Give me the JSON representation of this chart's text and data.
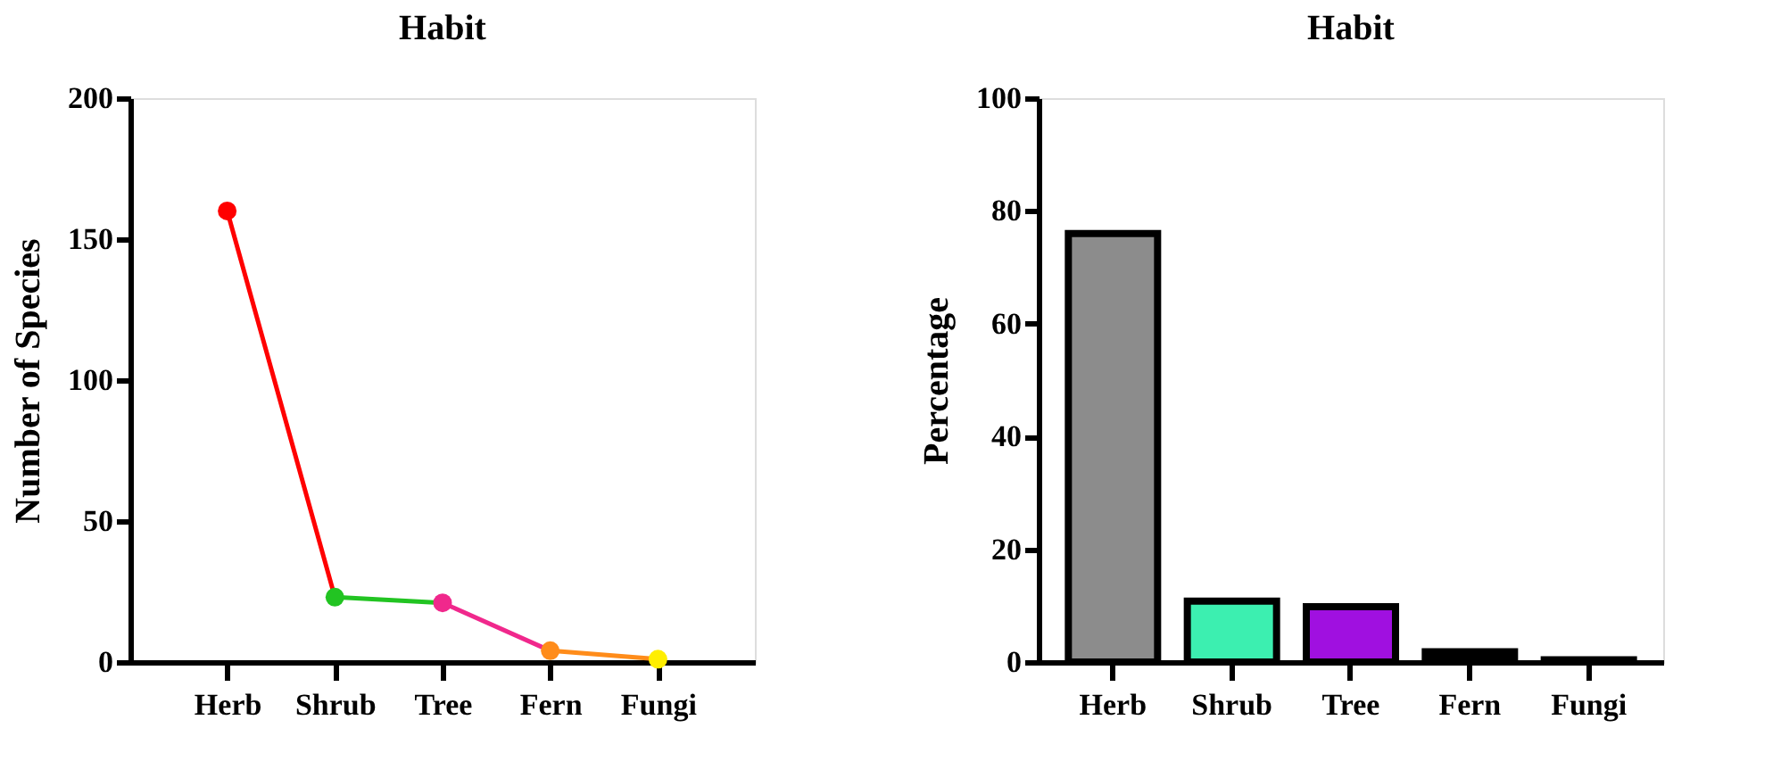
{
  "chart_data": [
    {
      "type": "line",
      "title": "Habit",
      "ylabel": "Number of Species",
      "categories": [
        "Herb",
        "Shrub",
        "Tree",
        "Fern",
        "Fungi"
      ],
      "series": [
        {
          "color": "#ff0000",
          "values": [
            160,
            23,
            null,
            null,
            null
          ]
        },
        {
          "color": "#22c422",
          "values": [
            null,
            23,
            21,
            null,
            null
          ]
        },
        {
          "color": "#f0288c",
          "values": [
            null,
            null,
            21,
            4,
            null
          ]
        },
        {
          "color": "#ff8c1a",
          "values": [
            null,
            null,
            null,
            4,
            1
          ]
        },
        {
          "type": "scatter",
          "marker": "circle",
          "values": [
            160,
            23,
            21,
            4,
            1
          ],
          "colors": [
            "#ff0000",
            "#22c422",
            "#f0288c",
            "#ff8c1a",
            "#ffee00"
          ]
        }
      ],
      "ylim": [
        0,
        200
      ],
      "yticks": [
        0,
        50,
        100,
        150,
        200
      ]
    },
    {
      "type": "bar",
      "title": "Habit",
      "ylabel": "Percentage",
      "categories": [
        "Herb",
        "Shrub",
        "Tree",
        "Fern",
        "Fungi"
      ],
      "values": [
        76,
        10.8,
        9.8,
        1.8,
        0.4
      ],
      "colors": [
        "#8c8c8c",
        "#3cefb0",
        "#a010e0",
        "#000000",
        "#000000"
      ],
      "ylim": [
        0,
        100
      ],
      "yticks": [
        0,
        20,
        40,
        60,
        80,
        100
      ]
    }
  ]
}
